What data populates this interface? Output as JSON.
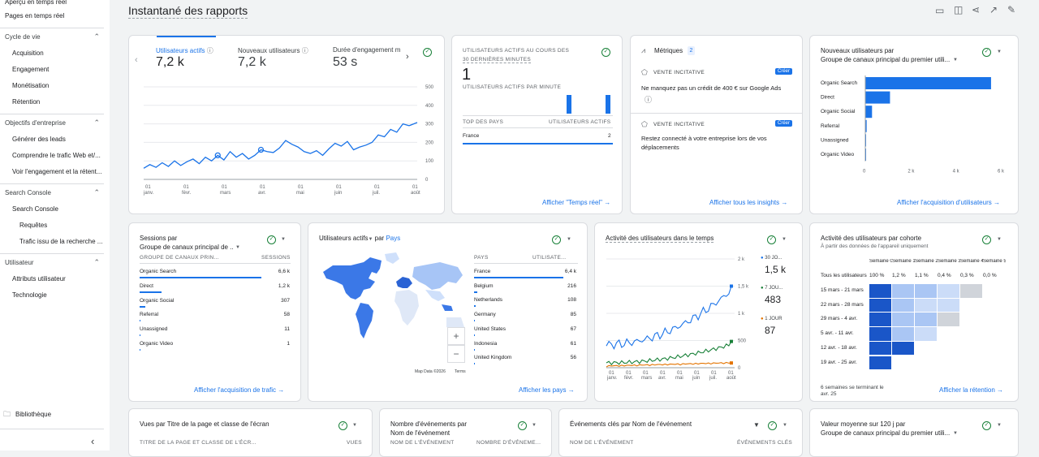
{
  "sidebar": {
    "top1": "Aperçu en temps réel",
    "top2": "Pages en temps réel",
    "s1": "Cycle de vie",
    "s1i": [
      "Acquisition",
      "Engagement",
      "Monétisation",
      "Rétention"
    ],
    "s2": "Objectifs d'entreprise",
    "s2i": [
      "Générer des leads",
      "Comprendre le trafic Web et/...",
      "Voir l'engagement et la rétent..."
    ],
    "s3": "Search Console",
    "s3i": "Search Console",
    "s3s": [
      "Requêtes",
      "Trafic issu de la recherche ..."
    ],
    "s4": "Utilisateur",
    "s4i": [
      "Attributs utilisateur",
      "Technologie"
    ],
    "lib": "Bibliothèque"
  },
  "page": {
    "title": "Instantané des rapports"
  },
  "c1": {
    "m1": "Utilisateurs actifs",
    "v1": "7,2 k",
    "m2": "Nouveaux utilisateurs",
    "v2": "7,2 k",
    "m3": "Durée d'engagement m",
    "v3": "53 s",
    "yt": [
      "500",
      "400",
      "300",
      "200",
      "100",
      "0"
    ],
    "xt": [
      [
        "01",
        "janv."
      ],
      [
        "01",
        "févr."
      ],
      [
        "01",
        "mars"
      ],
      [
        "01",
        "avr."
      ],
      [
        "01",
        "mai"
      ],
      [
        "01",
        "juin"
      ],
      [
        "01",
        "juil."
      ],
      [
        "01",
        "août"
      ]
    ]
  },
  "c2": {
    "h1": "UTILISATEURS ACTIFS AU COURS DES",
    "h2": "30 DERNIÈRES MINUTES",
    "val": "1",
    "sub": "UTILISATEURS ACTIFS PAR MINUTE",
    "c1": "TOP DES PAYS",
    "c2": "UTILISATEURS ACTIFS",
    "r1": "France",
    "r1v": "2",
    "link": "Afficher \"Temps réel\""
  },
  "c3": {
    "title": "Métriques",
    "badge": "2",
    "tag1": "VENTE INCITATIVE",
    "b1": "Créer",
    "t1": "Ne manquez pas un crédit de 400 € sur Google Ads",
    "tag2": "VENTE INCITATIVE",
    "b2": "Créer",
    "t2a": "Restez connecté à votre entreprise lors de vos",
    "t2b": "déplacements",
    "link": "Afficher tous les insights"
  },
  "c4": {
    "t1": "Nouveaux utilisateurs par",
    "t2": "Groupe de canaux principal du premier utili...",
    "rows": [
      "Organic Search",
      "Direct",
      "Organic Social",
      "Referral",
      "Unassigned",
      "Organic Video"
    ],
    "bars": [
      5600,
      1100,
      300,
      60,
      20,
      10
    ],
    "xt": [
      "0",
      "2 k",
      "4 k",
      "6 k"
    ],
    "link": "Afficher l'acquisition d'utilisateurs"
  },
  "c5": {
    "t1": "Sessions",
    "t1b": "par",
    "t2": "Groupe de canaux principal de ...",
    "h1": "GROUPE DE CANAUX PRIN...",
    "h2": "SESSIONS",
    "rows": [
      [
        "Organic Search",
        "6,6 k"
      ],
      [
        "Direct",
        "1,2 k"
      ],
      [
        "Organic Social",
        "307"
      ],
      [
        "Referral",
        "58"
      ],
      [
        "Unassigned",
        "11"
      ],
      [
        "Organic Video",
        "1"
      ]
    ],
    "link": "Afficher l'acquisition de trafic"
  },
  "c6": {
    "t1": "Utilisateurs actifs",
    "t1b": "par",
    "t2": "Pays",
    "h1": "PAYS",
    "h2": "UTILISATE...",
    "rows": [
      [
        "France",
        "6,4 k"
      ],
      [
        "Belgium",
        "216"
      ],
      [
        "Netherlands",
        "108"
      ],
      [
        "Germany",
        "85"
      ],
      [
        "United States",
        "67"
      ],
      [
        "Indonesia",
        "61"
      ],
      [
        "United Kingdom",
        "56"
      ]
    ],
    "md": "Map Data ©2026",
    "terms": "Terms",
    "link": "Afficher les pays"
  },
  "c7": {
    "title": "Activité des utilisateurs dans le temps",
    "l1": "30 JO...",
    "v1": "1,5 k",
    "l2": "7 JOU...",
    "v2": "483",
    "l3": "1 JOUR",
    "v3": "87",
    "yt": [
      "2 k",
      "1,5 k",
      "1 k",
      "500",
      "0"
    ],
    "xt": [
      [
        "01",
        "janv."
      ],
      [
        "01",
        "févr."
      ],
      [
        "01",
        "mars"
      ],
      [
        "01",
        "avr."
      ],
      [
        "01",
        "mai"
      ],
      [
        "01",
        "juin"
      ],
      [
        "01",
        "juil."
      ],
      [
        "01",
        "août"
      ]
    ]
  },
  "c8": {
    "t1": "Activité des utilisateurs par cohorte",
    "t2": "À partir des données de l'appareil uniquement",
    "cols": [
      "Semaine 0",
      "Semaine 1",
      "Semaine 2",
      "Semaine 3",
      "Semaine 4",
      "Semaine 5"
    ],
    "allL": "Tous les utilisateurs",
    "allV": [
      "100 %",
      "1,2 %",
      "1,1 %",
      "0,4 %",
      "0,3 %",
      "0,0 %"
    ],
    "rows": [
      "15 mars - 21 mars",
      "22 mars - 28 mars",
      "29 mars - 4 avr.",
      "5 avr. - 11 avr.",
      "12 avr. - 18 avr.",
      "19 avr. - 25 avr."
    ],
    "foot1": "6 semaines se terminant le",
    "foot2": "avr. 25",
    "link": "Afficher la rétention"
  },
  "b1": {
    "t1": "Vues par Titre de la page et classe de l'écran",
    "h1": "TITRE DE LA PAGE ET CLASSE DE L'ÉCR...",
    "h2": "VUES"
  },
  "b2": {
    "t1": "Nombre d'événements par",
    "t2": "Nom de l'événement",
    "h1": "NOM DE L'ÉVÉNEMENT",
    "h2": "NOMBRE D'ÉVÉNEME..."
  },
  "b3": {
    "t1": "Événements clés par Nom de l'événement",
    "h1": "NOM DE L'ÉVÉNEMENT",
    "h2": "ÉVÉNEMENTS CLÉS"
  },
  "b4": {
    "t1": "Valeur moyenne sur 120 j par",
    "t2": "Groupe de canaux principal du premier utili..."
  },
  "colors": {
    "blue": "#1a73e8",
    "green": "#188038",
    "orange": "#e37400"
  }
}
